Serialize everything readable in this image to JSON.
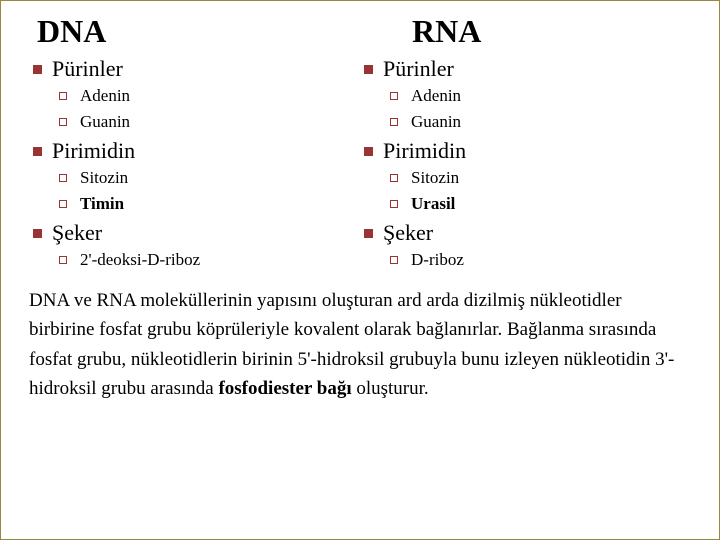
{
  "left": {
    "title": "DNA",
    "sections": [
      {
        "label": "Pürinler",
        "items": [
          {
            "text": "Adenin",
            "bold": false
          },
          {
            "text": "Guanin",
            "bold": false
          }
        ]
      },
      {
        "label": "Pirimidin",
        "items": [
          {
            "text": "Sitozin",
            "bold": false
          },
          {
            "text": "Timin",
            "bold": true
          }
        ]
      },
      {
        "label": "Şeker",
        "items": [
          {
            "text": "2'-deoksi-D-riboz",
            "bold": false
          }
        ]
      }
    ]
  },
  "right": {
    "title": "RNA",
    "sections": [
      {
        "label": "Pürinler",
        "items": [
          {
            "text": "Adenin",
            "bold": false
          },
          {
            "text": "Guanin",
            "bold": false
          }
        ]
      },
      {
        "label": "Pirimidin",
        "items": [
          {
            "text": "Sitozin",
            "bold": false
          },
          {
            "text": "Urasil",
            "bold": true
          }
        ]
      },
      {
        "label": "Şeker",
        "items": [
          {
            "text": "D-riboz",
            "bold": false
          }
        ]
      }
    ]
  },
  "paragraph": {
    "pre": "DNA ve RNA moleküllerinin yapısını oluşturan ard arda dizilmiş nükleotidler birbirine fosfat grubu köprüleriyle kovalent olarak bağlanırlar. Bağlanma sırasında fosfat grubu, nükleotidlerin birinin 5'-hidroksil grubuyla bunu izleyen nükleotidin 3'-hidroksil grubu arasında ",
    "bold": "fosfodiester bağı",
    "post": " oluşturur."
  },
  "colors": {
    "bullet": "#9a3333",
    "border": "#998844"
  },
  "fonts": {
    "title_size": 32,
    "section_size": 22,
    "item_size": 17,
    "para_size": 19
  }
}
